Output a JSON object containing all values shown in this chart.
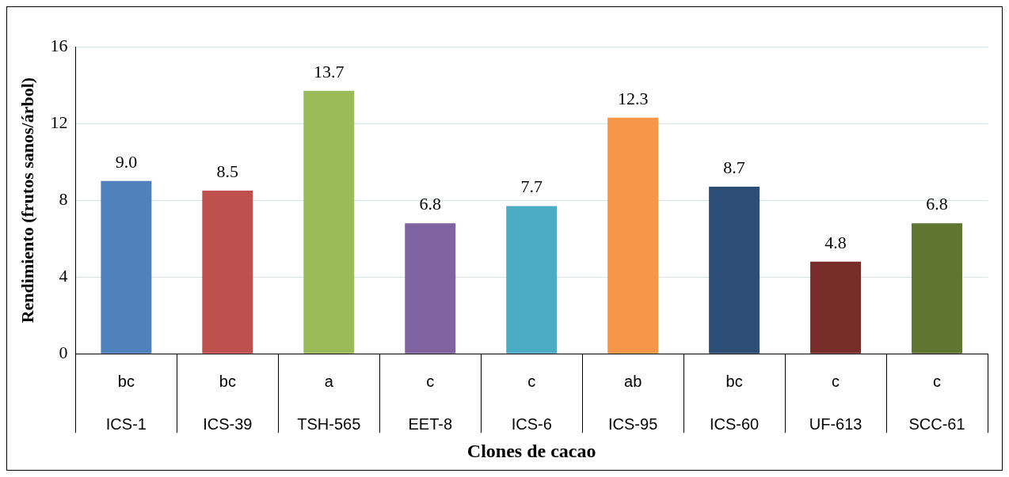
{
  "chart_data": {
    "type": "bar",
    "xlabel": "Clones de cacao",
    "ylabel": "Rendimiento (frutos sanos/árbol)",
    "categories": [
      "ICS-1",
      "ICS-39",
      "TSH-565",
      "EET-8",
      "ICS-6",
      "ICS-95",
      "ICS-60",
      "UF-613",
      "SCC-61"
    ],
    "values": [
      9.0,
      8.5,
      13.7,
      6.8,
      7.7,
      12.3,
      8.7,
      4.8,
      6.8
    ],
    "value_labels": [
      "9.0",
      "8.5",
      "13.7",
      "6.8",
      "7.7",
      "12.3",
      "8.7",
      "4.8",
      "6.8"
    ],
    "colors": [
      "#4f81bd",
      "#c0504d",
      "#9bbb59",
      "#8064a2",
      "#4bacc6",
      "#f79646",
      "#2c4d75",
      "#772c2a",
      "#5f7530"
    ],
    "ylim": [
      0,
      16
    ],
    "yticks": [
      0,
      4,
      8,
      12,
      16
    ],
    "grid": "y",
    "legend": false,
    "annotations": [
      "bc",
      "bc",
      "a",
      "c",
      "c",
      "ab",
      "bc",
      "c",
      "c"
    ]
  }
}
